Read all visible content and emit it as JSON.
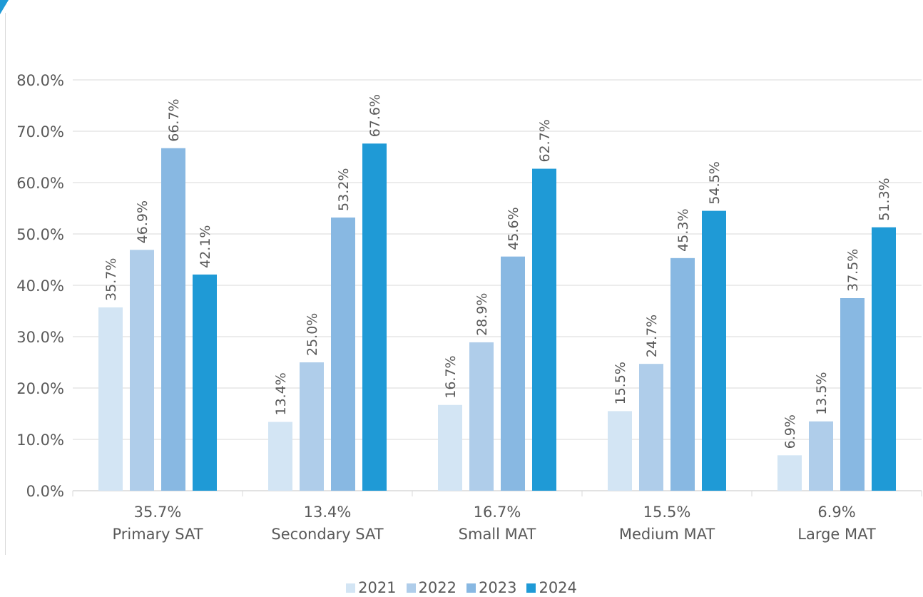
{
  "chart_data": {
    "type": "bar",
    "categories": [
      "Primary SAT",
      "Secondary SAT",
      "Small MAT",
      "Medium MAT",
      "Large MAT"
    ],
    "category_sublabels": [
      "35.7%",
      "13.4%",
      "16.7%",
      "15.5%",
      "6.9%"
    ],
    "series": [
      {
        "name": "2021",
        "color": "#d3e5f4",
        "values": [
          35.7,
          13.4,
          16.7,
          15.5,
          6.9
        ]
      },
      {
        "name": "2022",
        "color": "#afcdea",
        "values": [
          46.9,
          25.0,
          28.9,
          24.7,
          13.5
        ]
      },
      {
        "name": "2023",
        "color": "#88b8e2",
        "values": [
          66.7,
          53.2,
          45.6,
          45.3,
          37.5
        ]
      },
      {
        "name": "2024",
        "color": "#1f9ad6",
        "values": [
          42.1,
          67.6,
          62.7,
          54.5,
          51.3
        ]
      }
    ],
    "y_ticks": [
      "0.0%",
      "10.0%",
      "20.0%",
      "30.0%",
      "40.0%",
      "50.0%",
      "60.0%",
      "70.0%",
      "80.0%"
    ],
    "ylim": [
      0,
      80
    ],
    "grid": true,
    "legend_position": "bottom",
    "value_label_suffix": "%",
    "value_label_decimals": 1
  },
  "colors": {
    "accent": "#1f9ad6",
    "grid": "#d9d9d9",
    "text": "#595959"
  }
}
